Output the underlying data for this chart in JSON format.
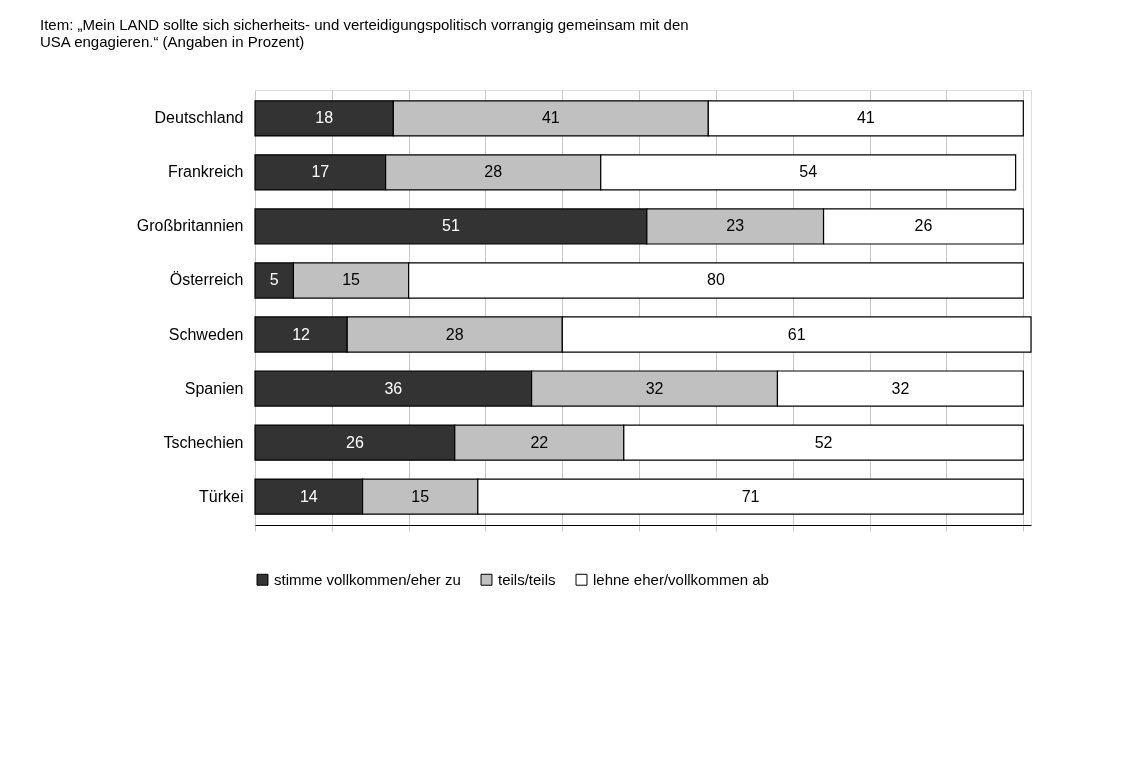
{
  "chart_data": {
    "type": "bar",
    "orientation": "horizontal",
    "stacked": true,
    "data_labels": true,
    "title": "Item:  „Mein LAND sollte sich sicherheits- und verteidigungspolitisch vorrangig gemeinsam mit den\n          USA engagieren.“ (Angaben in Prozent)",
    "categories": [
      "Deutschland",
      "Frankreich",
      "Großbritannien",
      "Österreich",
      "Schweden",
      "Spanien",
      "Tschechien",
      "Türkei"
    ],
    "series": [
      {
        "name": "stimme vollkommen/eher zu",
        "color": "#333333",
        "values": [
          18,
          17,
          51,
          5,
          12,
          36,
          26,
          14
        ]
      },
      {
        "name": "teils/teils",
        "color": "#c0c0c0",
        "values": [
          41,
          28,
          23,
          15,
          28,
          32,
          22,
          15
        ]
      },
      {
        "name": "lehne eher/vollkommen ab",
        "color": "#ffffff",
        "values": [
          41,
          54,
          26,
          80,
          61,
          32,
          52,
          71
        ]
      }
    ],
    "xlim": [
      0,
      101
    ],
    "xticks": [
      {
        "value": 0,
        "label": null
      },
      {
        "value": 10,
        "label": null
      },
      {
        "value": 20,
        "label": null
      },
      {
        "value": 30,
        "label": null
      },
      {
        "value": 40,
        "label": null
      },
      {
        "value": 50,
        "label": null
      },
      {
        "value": 60,
        "label": null
      },
      {
        "value": 70,
        "label": null
      },
      {
        "value": 80,
        "label": null
      },
      {
        "value": 90,
        "label": null
      },
      {
        "value": 100,
        "label": null
      }
    ],
    "tick_labels": "y",
    "grid": "x",
    "legend": "bottom"
  }
}
